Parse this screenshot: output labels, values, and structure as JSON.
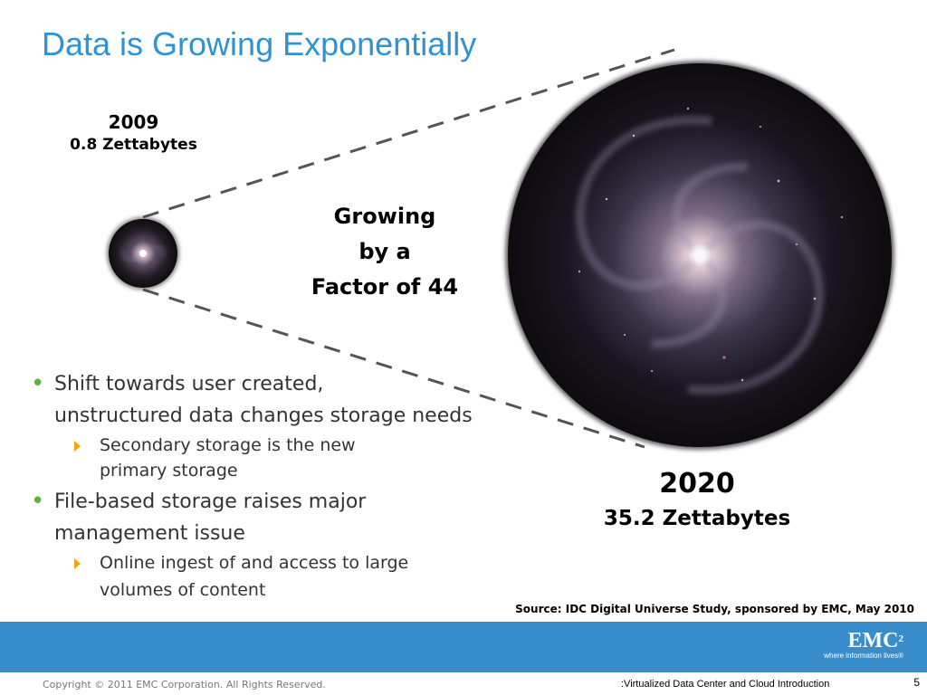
{
  "slide": {
    "title": "Data is Growing Exponentially",
    "small": {
      "year": "2009",
      "value": "0.8 Zettabytes"
    },
    "growth": [
      "Growing",
      "by a",
      "Factor of 44"
    ],
    "large": {
      "year": "2020",
      "value": "35.2 Zettabytes"
    },
    "bullets": [
      {
        "lines": [
          "Shift towards user created,",
          "unstructured data changes storage needs"
        ],
        "sub": [
          "Secondary storage is the new",
          "primary storage"
        ]
      },
      {
        "lines": [
          "File-based storage raises major",
          "management issue"
        ],
        "sub": [
          "Online ingest of and access to large",
          "volumes of content"
        ]
      }
    ],
    "source": "Source: IDC Digital Universe Study, sponsored by EMC, May 2010"
  },
  "brand": {
    "logo_text": "EMC",
    "logo_sup": "2",
    "tagline": "where information lives®"
  },
  "footer": {
    "copyright": "Copyright © 2011 EMC Corporation. All Rights Reserved.",
    "course": ":Virtualized Data Center and Cloud Introduction",
    "page": "5"
  },
  "colors": {
    "title": "#2E93D5",
    "band": "#3A8DCB",
    "bullet": "#5DB046",
    "arrow": "#F0A800"
  },
  "images": [
    "small-galaxy",
    "large-galaxy"
  ]
}
